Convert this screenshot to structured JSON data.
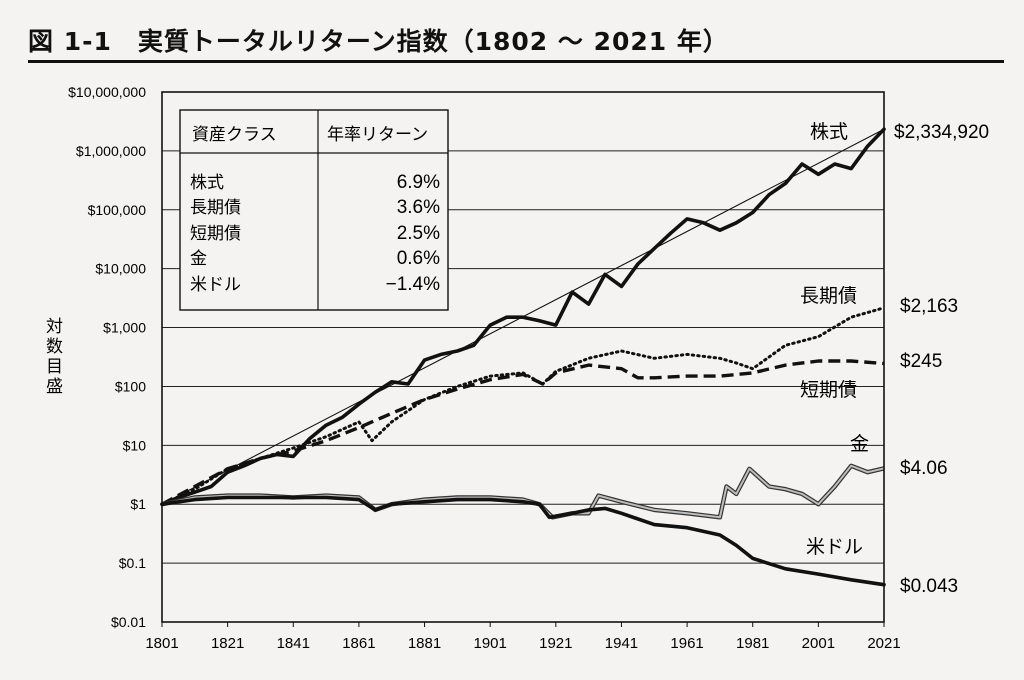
{
  "figure": {
    "title": "図 1-1　実質トータルリターン指数（1802 ～ 2021 年）"
  },
  "table": {
    "headers": [
      "資産クラス",
      "年率リターン"
    ],
    "rows": [
      {
        "asset": "株式",
        "return": "6.9%"
      },
      {
        "asset": "長期債",
        "return": "3.6%"
      },
      {
        "asset": "短期債",
        "return": "2.5%"
      },
      {
        "asset": "金",
        "return": "0.6%"
      },
      {
        "asset": "米ドル",
        "return": "−1.4%"
      }
    ]
  },
  "chart_data": {
    "type": "line",
    "yscale": "log",
    "ylabel": "対数目盛",
    "xlim": [
      1801,
      2021
    ],
    "ylim": [
      0.01,
      10000000
    ],
    "x_ticks": [
      "1801",
      "1821",
      "1841",
      "1861",
      "1881",
      "1901",
      "1921",
      "1941",
      "1961",
      "1981",
      "2001",
      "2021"
    ],
    "y_ticks": [
      {
        "value": 10000000,
        "label": "$10,000,000"
      },
      {
        "value": 1000000,
        "label": "$1,000,000"
      },
      {
        "value": 100000,
        "label": "$100,000"
      },
      {
        "value": 10000,
        "label": "$10,000"
      },
      {
        "value": 1000,
        "label": "$1,000"
      },
      {
        "value": 100,
        "label": "$100"
      },
      {
        "value": 10,
        "label": "$10"
      },
      {
        "value": 1,
        "label": "$1"
      },
      {
        "value": 0.1,
        "label": "$0.1"
      },
      {
        "value": 0.01,
        "label": "$0.01"
      }
    ],
    "grid": "horizontal",
    "series": [
      {
        "name": "株式",
        "end_label": "$2,334,920",
        "style": "thick-solid",
        "color": "#111111",
        "x": [
          1801,
          1806,
          1811,
          1816,
          1821,
          1826,
          1831,
          1836,
          1841,
          1846,
          1851,
          1856,
          1861,
          1866,
          1871,
          1876,
          1881,
          1886,
          1891,
          1896,
          1901,
          1906,
          1911,
          1916,
          1921,
          1926,
          1931,
          1936,
          1941,
          1946,
          1951,
          1956,
          1961,
          1966,
          1971,
          1976,
          1981,
          1986,
          1991,
          1996,
          2001,
          2006,
          2011,
          2016,
          2021
        ],
        "values": [
          1,
          1.3,
          1.6,
          2,
          3.5,
          4.5,
          6,
          7,
          6.5,
          13,
          22,
          30,
          50,
          80,
          120,
          110,
          280,
          350,
          400,
          500,
          1100,
          1500,
          1500,
          1300,
          1100,
          4000,
          2500,
          8000,
          5000,
          12000,
          22000,
          40000,
          70000,
          60000,
          45000,
          60000,
          90000,
          180000,
          280000,
          600000,
          400000,
          600000,
          500000,
          1200000,
          2334920
        ]
      },
      {
        "name": "長期債",
        "end_label": "$2,163",
        "style": "dotted",
        "color": "#111111",
        "x": [
          1801,
          1811,
          1821,
          1831,
          1841,
          1851,
          1861,
          1865,
          1871,
          1881,
          1891,
          1901,
          1911,
          1917,
          1921,
          1931,
          1941,
          1951,
          1961,
          1971,
          1976,
          1981,
          1991,
          2001,
          2011,
          2021
        ],
        "values": [
          1,
          1.8,
          4,
          6,
          9,
          14,
          25,
          12,
          25,
          60,
          100,
          150,
          170,
          110,
          180,
          300,
          400,
          300,
          350,
          300,
          250,
          200,
          500,
          700,
          1500,
          2163
        ]
      },
      {
        "name": "短期債",
        "end_label": "$245",
        "style": "dashed",
        "color": "#111111",
        "x": [
          1801,
          1811,
          1821,
          1831,
          1841,
          1851,
          1861,
          1871,
          1881,
          1891,
          1901,
          1911,
          1917,
          1921,
          1931,
          1941,
          1946,
          1951,
          1961,
          1971,
          1981,
          1991,
          2001,
          2011,
          2021
        ],
        "values": [
          1,
          2,
          4,
          6,
          8,
          12,
          20,
          35,
          60,
          90,
          130,
          160,
          110,
          170,
          230,
          200,
          140,
          140,
          150,
          150,
          170,
          230,
          270,
          270,
          245
        ]
      },
      {
        "name": "金",
        "end_label": "$4.06",
        "style": "gray-double",
        "color": "#777777",
        "x": [
          1801,
          1811,
          1821,
          1831,
          1841,
          1851,
          1861,
          1866,
          1871,
          1881,
          1891,
          1901,
          1911,
          1916,
          1920,
          1926,
          1931,
          1934,
          1941,
          1951,
          1961,
          1971,
          1973,
          1976,
          1980,
          1986,
          1991,
          1996,
          2001,
          2006,
          2011,
          2016,
          2021
        ],
        "values": [
          1,
          1.3,
          1.4,
          1.4,
          1.3,
          1.4,
          1.3,
          0.8,
          1,
          1.2,
          1.3,
          1.3,
          1.2,
          1,
          0.6,
          0.7,
          0.7,
          1.4,
          1.1,
          0.8,
          0.7,
          0.6,
          2,
          1.5,
          4,
          2,
          1.8,
          1.5,
          1,
          2,
          4.5,
          3.5,
          4.06
        ]
      },
      {
        "name": "米ドル",
        "end_label": "$0.043",
        "style": "thick-solid",
        "color": "#111111",
        "x": [
          1801,
          1811,
          1821,
          1831,
          1841,
          1851,
          1861,
          1866,
          1871,
          1881,
          1891,
          1901,
          1911,
          1916,
          1919,
          1926,
          1931,
          1936,
          1941,
          1951,
          1961,
          1971,
          1976,
          1981,
          1991,
          2001,
          2011,
          2021
        ],
        "values": [
          1,
          1.2,
          1.3,
          1.3,
          1.3,
          1.3,
          1.2,
          0.8,
          1,
          1.1,
          1.2,
          1.2,
          1.1,
          1,
          0.6,
          0.7,
          0.8,
          0.85,
          0.7,
          0.45,
          0.4,
          0.3,
          0.2,
          0.12,
          0.08,
          0.065,
          0.052,
          0.043
        ]
      }
    ],
    "trendline": {
      "x": [
        1801,
        2021
      ],
      "values": [
        1,
        2334920
      ]
    }
  }
}
